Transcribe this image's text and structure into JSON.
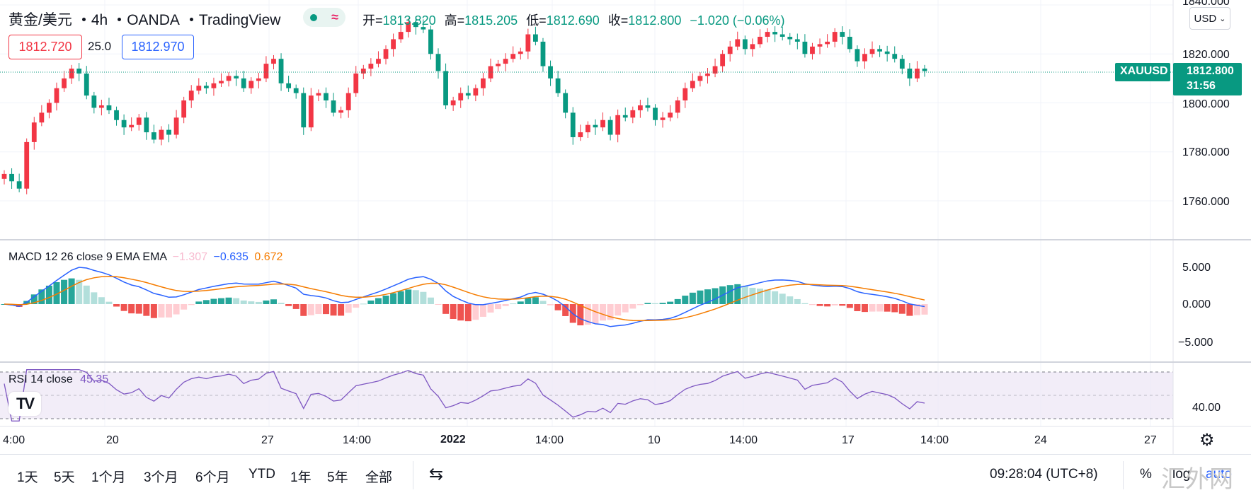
{
  "header": {
    "symbol": "黄金/美元",
    "interval": "4h",
    "broker": "OANDA",
    "platform": "TradingView",
    "open_label": "开=",
    "open": "1813.820",
    "high_label": "高=",
    "high": "1815.205",
    "low_label": "低=",
    "low": "1812.690",
    "close_label": "收=",
    "close": "1812.800",
    "change": "−1.020 (−0.06%)"
  },
  "trade": {
    "sell": "1812.720",
    "spread": "25.0",
    "buy": "1812.970"
  },
  "price_axis": {
    "currency_button": "USD",
    "labels": [
      "1840.000",
      "1820.000",
      "1800.000",
      "1780.000",
      "1760.000"
    ],
    "symbol_tag": "XAUUSD",
    "last_price": "1812.800",
    "countdown": "31:56"
  },
  "macd": {
    "label": "MACD 12 26 close 9 EMA EMA",
    "hist": "−1.307",
    "macd": "−0.635",
    "signal": "0.672",
    "axis": [
      "5.000",
      "0.000",
      "−5.000"
    ]
  },
  "rsi": {
    "label": "RSI 14 close",
    "value": "45.35",
    "axis": [
      "40.00"
    ]
  },
  "time_axis": [
    "4:00",
    "20",
    "27",
    "14:00",
    "2022",
    "14:00",
    "10",
    "14:00",
    "17",
    "14:00",
    "24",
    "27"
  ],
  "bottom": {
    "ranges": [
      "1天",
      "5天",
      "1个月",
      "3个月",
      "6个月",
      "YTD",
      "1年",
      "5年",
      "全部"
    ],
    "time": "09:28:04 (UTC+8)",
    "percent": "%",
    "log": "log",
    "auto": "auto",
    "watermark": "汇外网"
  },
  "colors": {
    "up": "#f23645",
    "down": "#089981",
    "macd_line": "#2962ff",
    "signal_line": "#f57c00",
    "rsi_line": "#7e57c2",
    "rsi_band": "#ede7f6",
    "hist_pos_strong": "#26a69a",
    "hist_pos_weak": "#b2dfdb",
    "hist_neg_strong": "#ef5350",
    "hist_neg_weak": "#ffcdd2"
  },
  "icons": {
    "settings": "gear-icon",
    "compare": "compare-icon",
    "logo": "tradingview-logo"
  },
  "chart_data": {
    "type": "candlestick",
    "scale": {
      "price_min": 1750,
      "price_max": 1840
    },
    "closes": [
      1771,
      1768,
      1765,
      1784,
      1792,
      1796,
      1800,
      1806,
      1810,
      1814,
      1812,
      1803,
      1798,
      1799,
      1797,
      1793,
      1790,
      1791,
      1794,
      1788,
      1785,
      1789,
      1787,
      1794,
      1801,
      1805,
      1807,
      1806,
      1808,
      1809,
      1811,
      1810,
      1806,
      1809,
      1810,
      1816,
      1818,
      1808,
      1806,
      1804,
      1790,
      1803,
      1804,
      1801,
      1796,
      1797,
      1804,
      1812,
      1814,
      1816,
      1818,
      1822,
      1826,
      1829,
      1833,
      1831,
      1830,
      1820,
      1813,
      1799,
      1801,
      1804,
      1803,
      1806,
      1810,
      1815,
      1816,
      1818,
      1820,
      1821,
      1828,
      1825,
      1815,
      1810,
      1804,
      1796,
      1786,
      1788,
      1791,
      1790,
      1793,
      1787,
      1795,
      1794,
      1797,
      1799,
      1798,
      1793,
      1794,
      1796,
      1801,
      1806,
      1809,
      1811,
      1812,
      1815,
      1820,
      1823,
      1826,
      1822,
      1824,
      1827,
      1829,
      1828,
      1827,
      1826,
      1825,
      1820,
      1823,
      1824,
      1825,
      1829,
      1827,
      1822,
      1817,
      1820,
      1822,
      1821,
      1820,
      1818,
      1814,
      1810,
      1814,
      1813
    ]
  }
}
